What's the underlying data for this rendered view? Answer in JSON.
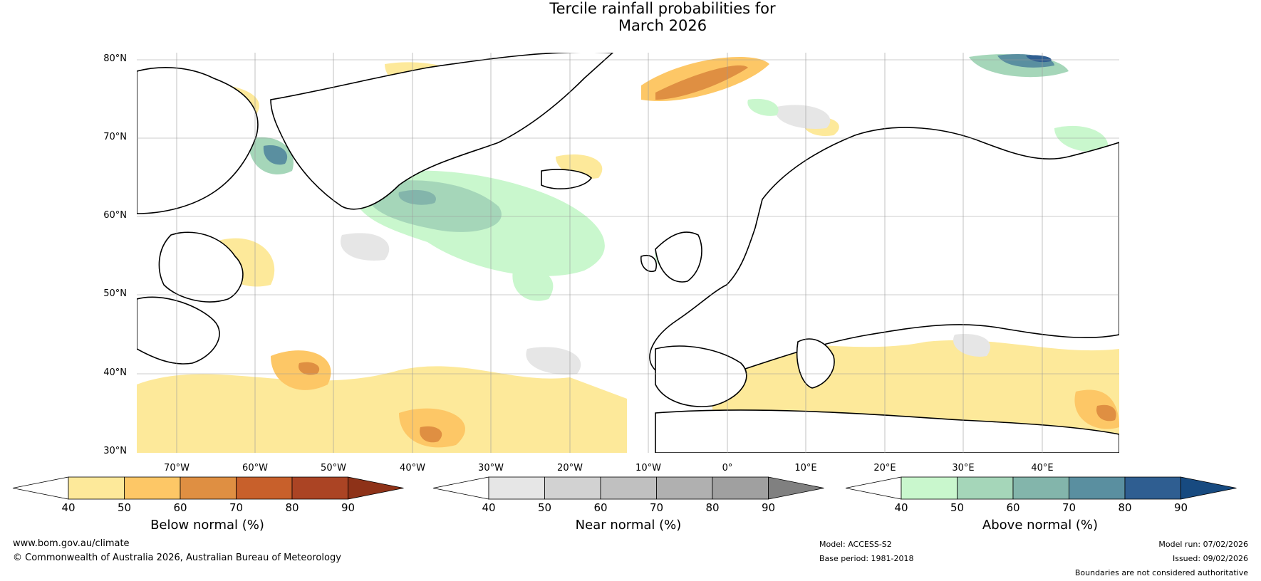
{
  "title": {
    "line1": "Tercile rainfall probabilities for",
    "line2": "March 2026"
  },
  "lat_ticks": [
    "80°N",
    "70°N",
    "60°N",
    "50°N",
    "40°N",
    "30°N"
  ],
  "lon_ticks": [
    "70°W",
    "60°W",
    "50°W",
    "40°W",
    "30°W",
    "20°W",
    "10°W",
    "0°",
    "10°E",
    "20°E",
    "30°E",
    "40°E"
  ],
  "colorbars": [
    {
      "label": "Below normal (%)",
      "ticks": [
        "40",
        "50",
        "60",
        "70",
        "80",
        "90"
      ],
      "colors": [
        "#ffffff",
        "#fde99a",
        "#fdc766",
        "#df8f42",
        "#c8602b",
        "#ab4424",
        "#8e3218"
      ]
    },
    {
      "label": "Near normal (%)",
      "ticks": [
        "40",
        "50",
        "60",
        "70",
        "80",
        "90"
      ],
      "colors": [
        "#ffffff",
        "#e6e6e6",
        "#d2d2d2",
        "#c0c0c0",
        "#b0b0b0",
        "#a0a0a0",
        "#808080"
      ]
    },
    {
      "label": "Above normal (%)",
      "ticks": [
        "40",
        "50",
        "60",
        "70",
        "80",
        "90"
      ],
      "colors": [
        "#ffffff",
        "#c9f7cd",
        "#a5d6b9",
        "#83b5ab",
        "#5a8fa0",
        "#2f5e91",
        "#174a80"
      ]
    }
  ],
  "footer": {
    "website": "www.bom.gov.au/climate",
    "copyright": "© Commonwealth of Australia 2026, Australian Bureau of Meteorology",
    "model": "Model: ACCESS-S2",
    "base_period": "Base period: 1981-2018",
    "model_run": "Model run: 07/02/2026",
    "issued": "Issued: 09/02/2026",
    "disclaimer": "Boundaries are not considered authoritative"
  }
}
